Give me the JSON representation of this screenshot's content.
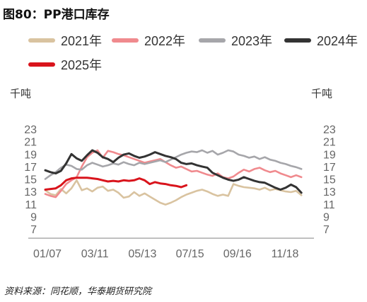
{
  "title": "图80：PP港口库存",
  "source": "资料来源：同花顺，华泰期货研究院",
  "chart_data": {
    "type": "line",
    "title": "图80：PP港口库存",
    "left_unit": "千吨",
    "right_unit": "千吨",
    "ylim": [
      7,
      24
    ],
    "yticks": [
      7,
      9,
      11,
      13,
      15,
      17,
      19,
      21,
      23
    ],
    "x_tick_labels": [
      "01/07",
      "03/11",
      "05/13",
      "07/15",
      "09/16",
      "11/18"
    ],
    "xlim_weeks": [
      0,
      51
    ],
    "grid": false,
    "legend_position": "top",
    "series": [
      {
        "name": "2021年",
        "color": "#d9c3a0",
        "values": [
          13.2,
          12.6,
          12.4,
          13.4,
          12.7,
          13.5,
          14.8,
          13.2,
          13.5,
          13.0,
          13.6,
          13.8,
          13.1,
          13.3,
          12.8,
          12.0,
          12.2,
          12.9,
          12.3,
          12.7,
          12.2,
          11.7,
          11.2,
          10.9,
          11.2,
          11.6,
          12.1,
          12.5,
          12.8,
          13.1,
          13.3,
          13.0,
          12.6,
          12.3,
          12.5,
          12.3,
          14.2,
          13.9,
          13.7,
          13.6,
          13.5,
          13.3,
          13.6,
          13.2,
          13.4,
          13.2,
          13.0,
          12.9,
          13.1,
          12.4
        ]
      },
      {
        "name": "2022年",
        "color": "#f08a8e",
        "values": [
          12.6,
          12.3,
          12.1,
          13.1,
          14.2,
          14.8,
          15.3,
          17.0,
          18.5,
          19.2,
          19.6,
          18.4,
          19.5,
          19.3,
          19.0,
          18.8,
          18.5,
          18.2,
          17.9,
          17.6,
          17.8,
          18.0,
          18.2,
          17.7,
          17.2,
          16.8,
          17.0,
          16.6,
          16.2,
          16.3,
          16.0,
          15.7,
          15.5,
          15.9,
          15.3,
          15.1,
          15.4,
          16.0,
          16.5,
          16.2,
          16.6,
          16.8,
          16.4,
          16.1,
          16.3,
          15.9,
          15.6,
          15.3,
          15.6,
          15.3
        ]
      },
      {
        "name": "2023年",
        "color": "#a6a6aa",
        "values": [
          15.0,
          15.6,
          16.1,
          16.8,
          17.3,
          17.1,
          16.6,
          16.5,
          17.2,
          17.6,
          17.3,
          17.0,
          17.2,
          17.5,
          17.3,
          17.7,
          17.4,
          17.2,
          17.6,
          17.4,
          17.6,
          17.8,
          18.0,
          17.7,
          18.1,
          18.5,
          18.9,
          19.2,
          19.4,
          19.3,
          19.6,
          19.2,
          19.5,
          18.9,
          19.2,
          19.6,
          19.4,
          18.9,
          18.7,
          18.4,
          18.6,
          18.2,
          18.5,
          18.1,
          17.9,
          17.6,
          17.4,
          17.1,
          16.9,
          16.6
        ]
      },
      {
        "name": "2024年",
        "color": "#333333",
        "values": [
          16.4,
          16.1,
          15.9,
          16.3,
          17.5,
          19.0,
          18.3,
          17.9,
          18.8,
          19.6,
          19.2,
          18.5,
          18.2,
          17.7,
          18.4,
          18.9,
          19.1,
          18.7,
          18.4,
          18.6,
          18.9,
          19.3,
          19.0,
          18.7,
          18.5,
          18.2,
          17.6,
          17.4,
          17.5,
          17.2,
          17.0,
          16.8,
          16.0,
          15.6,
          15.2,
          14.9,
          14.7,
          14.9,
          15.3,
          15.0,
          14.7,
          14.5,
          14.4,
          14.0,
          13.6,
          13.3,
          13.6,
          14.1,
          13.7,
          12.8
        ]
      },
      {
        "name": "2025年",
        "color": "#d9141c",
        "values": [
          13.3,
          13.4,
          13.5,
          14.0,
          14.8,
          15.1,
          15.2,
          15.2,
          15.2,
          15.1,
          15.0,
          14.8,
          14.6,
          14.7,
          14.6,
          14.8,
          14.7,
          14.8,
          15.1,
          14.8,
          14.2,
          14.5,
          14.3,
          14.2,
          14.0,
          13.9,
          13.7,
          14.0
        ]
      }
    ]
  }
}
